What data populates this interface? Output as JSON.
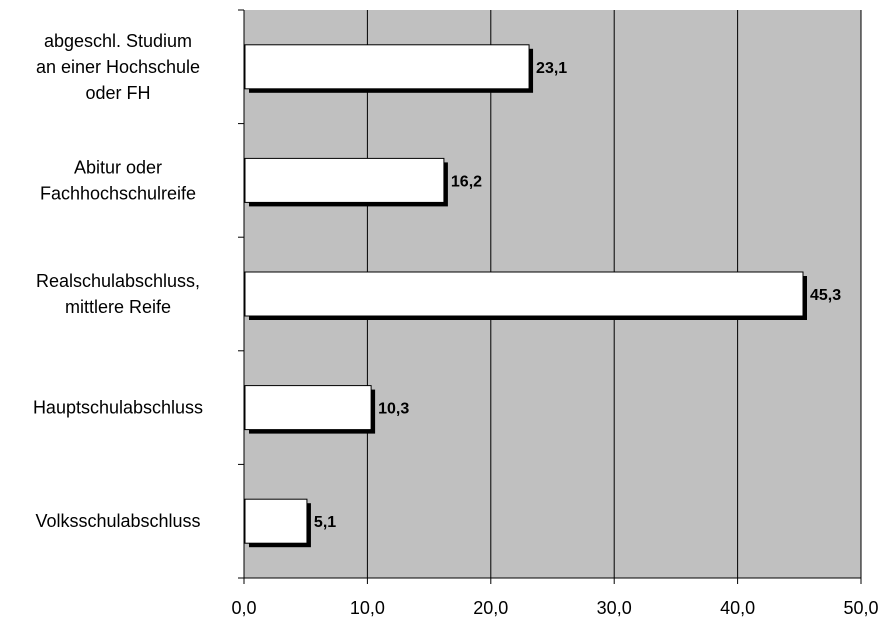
{
  "chart_data": {
    "type": "bar",
    "orientation": "horizontal",
    "categories": [
      [
        "abgeschl. Studium",
        "an einer Hochschule",
        "oder FH"
      ],
      [
        "Abitur oder",
        "Fachhochschulreife"
      ],
      [
        "Realschulabschluss,",
        "mittlere Reife"
      ],
      [
        "Hauptschulabschluss"
      ],
      [
        "Volksschulabschluss"
      ]
    ],
    "values": [
      23.1,
      16.2,
      45.3,
      10.3,
      5.1
    ],
    "data_labels": [
      "23,1",
      "16,2",
      "45,3",
      "10,3",
      "5,1"
    ],
    "xlim": [
      0,
      50
    ],
    "x_ticks": [
      0,
      10,
      20,
      30,
      40,
      50
    ],
    "x_tick_labels": [
      "0,0",
      "10,0",
      "20,0",
      "30,0",
      "40,0",
      "50,0"
    ],
    "title": "",
    "xlabel": "",
    "ylabel": "",
    "grid": "vertical",
    "legend": "none",
    "colors": {
      "plot_background": "#c0c0c0",
      "bar_fill": "#ffffff",
      "bar_border": "#000000",
      "bar_shadow": "#000000",
      "gridline": "#000000"
    }
  }
}
